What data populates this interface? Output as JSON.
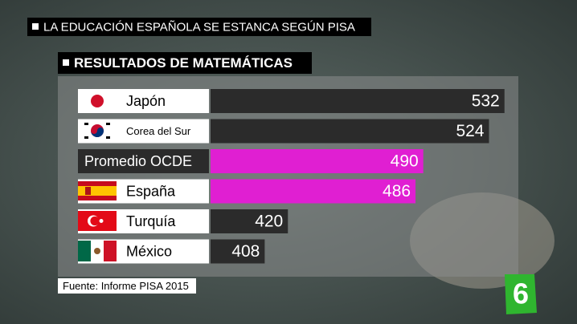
{
  "header": {
    "title": "LA EDUCACIÓN ESPAÑOLA SE ESTANCA SEGÚN PISA",
    "logo": "6"
  },
  "chart_data": {
    "type": "bar",
    "orientation": "horizontal",
    "title": "RESULTADOS DE MATEMÁTICAS",
    "categories": [
      "Japón",
      "Corea del Sur",
      "Promedio OCDE",
      "España",
      "Turquía",
      "México"
    ],
    "values": [
      532,
      524,
      490,
      486,
      420,
      408
    ],
    "colors": [
      "#2b2b2b",
      "#2b2b2b",
      "#e01fd2",
      "#e01fd2",
      "#2b2b2b",
      "#2b2b2b"
    ],
    "label_box_colors": [
      "#ffffff",
      "#ffffff",
      "#2b2b2b",
      "#ffffff",
      "#ffffff",
      "#ffffff"
    ],
    "xlim": [
      380,
      540
    ],
    "source": "Fuente: Informe PISA 2015"
  }
}
